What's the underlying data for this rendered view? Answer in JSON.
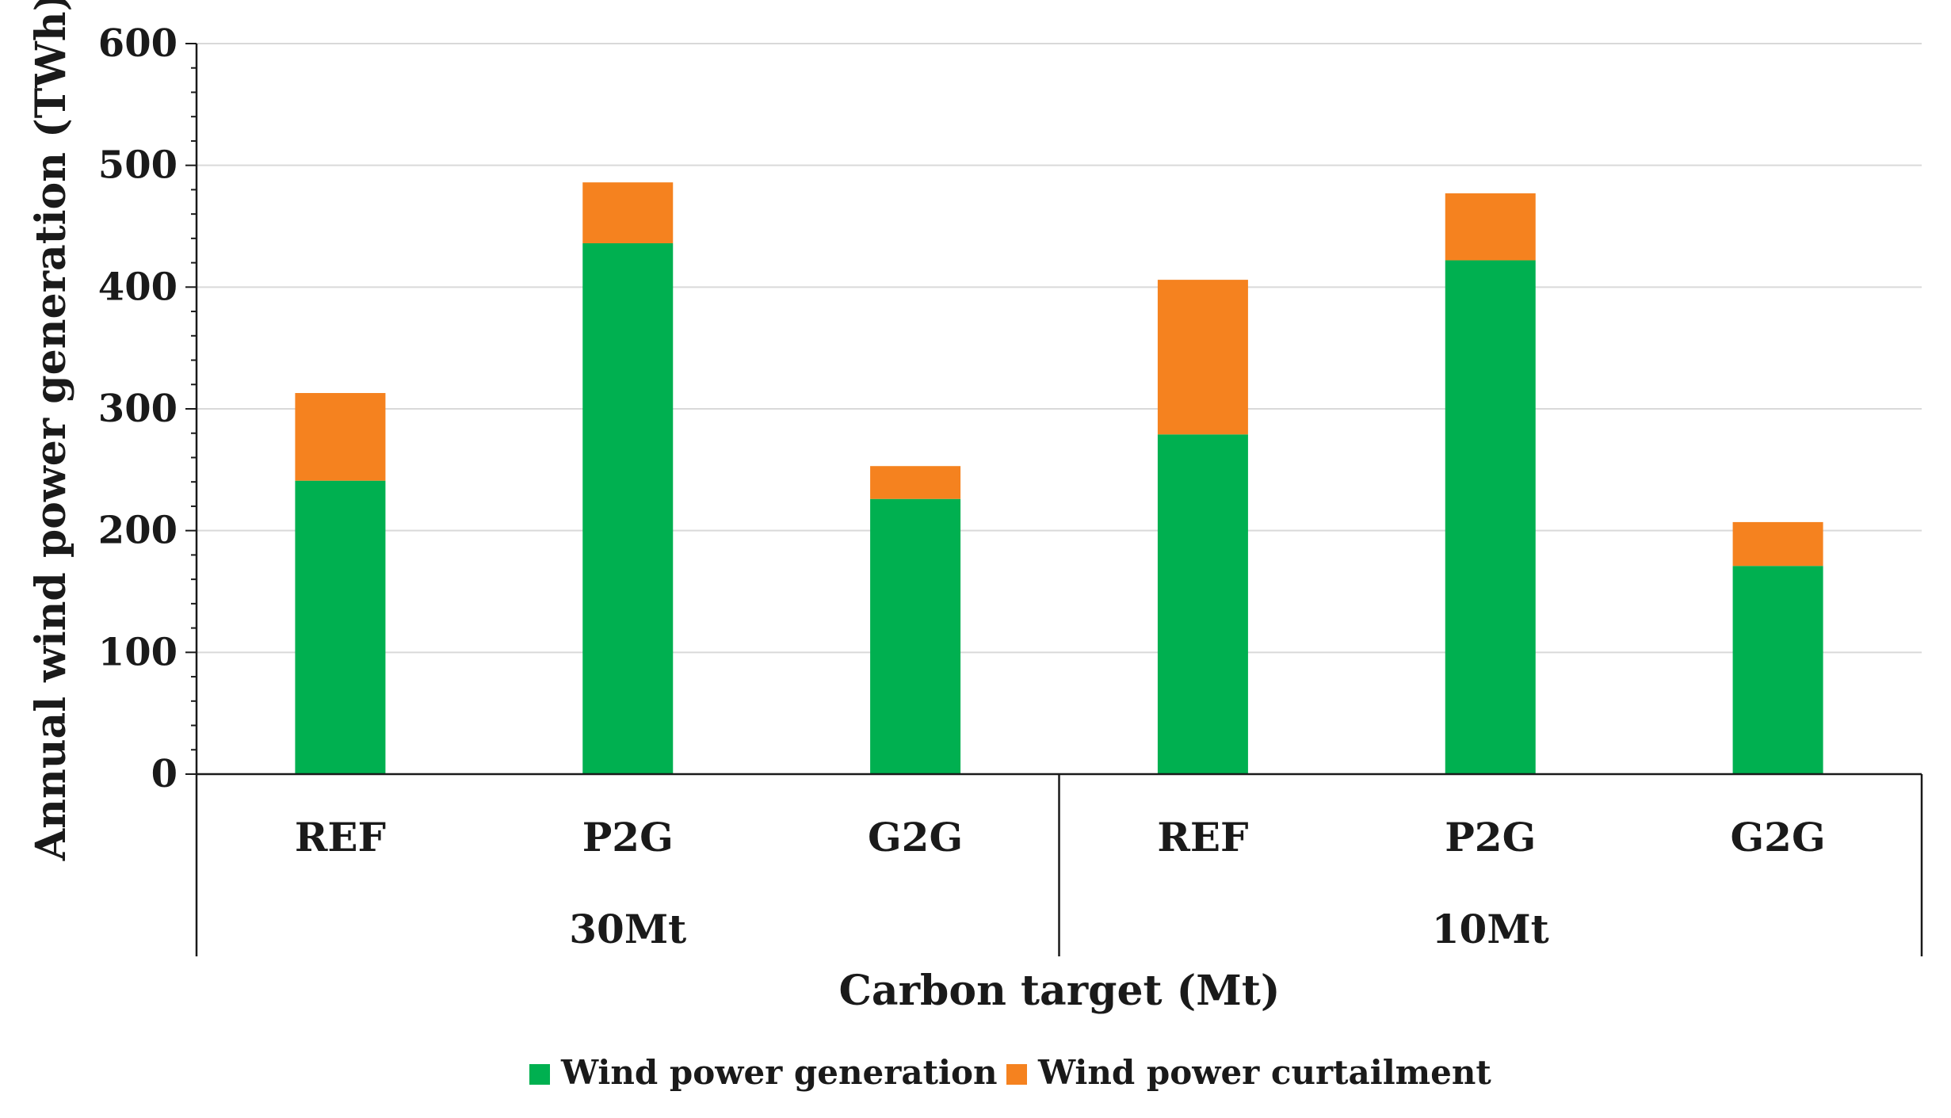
{
  "chart_data": {
    "type": "bar",
    "stacked": true,
    "title": "",
    "xlabel": "Carbon target (Mt)",
    "ylabel": "Annual wind power generation (TWh)",
    "ylim": [
      0,
      600
    ],
    "yticks": [
      0,
      100,
      200,
      300,
      400,
      500,
      600
    ],
    "grid": true,
    "legend_position": "bottom",
    "groups": [
      {
        "label": "30Mt",
        "categories": [
          "REF",
          "P2G",
          "G2G"
        ]
      },
      {
        "label": "10Mt",
        "categories": [
          "REF",
          "P2G",
          "G2G"
        ]
      }
    ],
    "categories": [
      "REF",
      "P2G",
      "G2G",
      "REF",
      "P2G",
      "G2G"
    ],
    "series": [
      {
        "name": "Wind power generation",
        "color": "#00B050",
        "values": [
          241,
          436,
          226,
          279,
          422,
          171
        ]
      },
      {
        "name": "Wind power curtailment",
        "color": "#F5821F",
        "values": [
          72,
          50,
          27,
          127,
          55,
          36
        ]
      }
    ]
  }
}
